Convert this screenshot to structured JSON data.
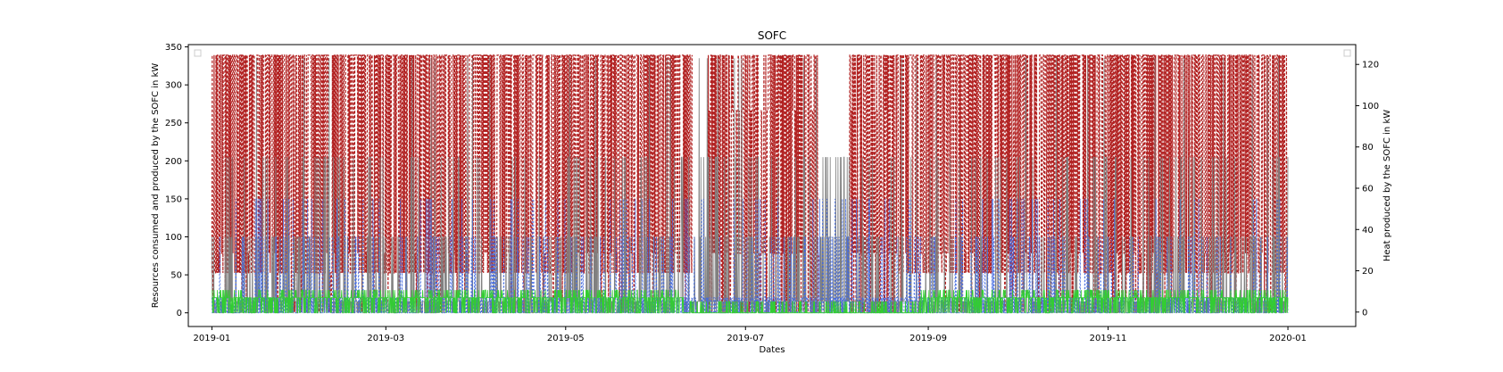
{
  "chart_data": {
    "type": "line",
    "title": "SOFC",
    "xlabel": "Dates",
    "ylabel": "Resources consumed and produced by the SOFC in kW",
    "y2label": "Heat produced by the SOFC in kW",
    "xlim": [
      "2018-12-24",
      "2020-01-24"
    ],
    "ylim": [
      -18,
      353
    ],
    "y2lim": [
      -7,
      129.6
    ],
    "x_ticks": [
      "2019-01",
      "2019-03",
      "2019-05",
      "2019-07",
      "2019-09",
      "2019-11",
      "2020-01"
    ],
    "y_ticks": [
      0,
      50,
      100,
      150,
      200,
      250,
      300,
      350
    ],
    "y2_ticks": [
      0,
      20,
      40,
      60,
      80,
      100,
      120
    ],
    "grid": false,
    "legend": "empty legend boxes at top-left and top-right",
    "date_range": [
      "2019-01-01",
      "2019-12-31"
    ],
    "series": [
      {
        "axis": "right",
        "color": "#b22222",
        "style": "dashed",
        "levels": [
          0,
          19,
          28.5,
          97.6,
          124.5
        ],
        "gaps": [
          [
            "2019-06-13",
            "2019-06-18"
          ],
          [
            "2019-07-26",
            "2019-08-05"
          ]
        ],
        "sparse": [
          [
            "2019-06-18",
            "2019-08-21"
          ]
        ]
      },
      {
        "axis": "left",
        "color": "#808080",
        "style": "solid",
        "levels": [
          0,
          15,
          100,
          205,
          265,
          335
        ]
      },
      {
        "axis": "left",
        "color": "#4169e1",
        "style": "dashed",
        "levels": [
          0,
          20,
          100,
          150,
          200,
          250,
          265
        ]
      },
      {
        "axis": "left",
        "color": "#32cd32",
        "style": "solid",
        "levels": [
          0,
          15,
          20,
          30
        ],
        "low": [
          [
            "2019-06-10",
            "2019-08-29"
          ]
        ]
      }
    ]
  }
}
